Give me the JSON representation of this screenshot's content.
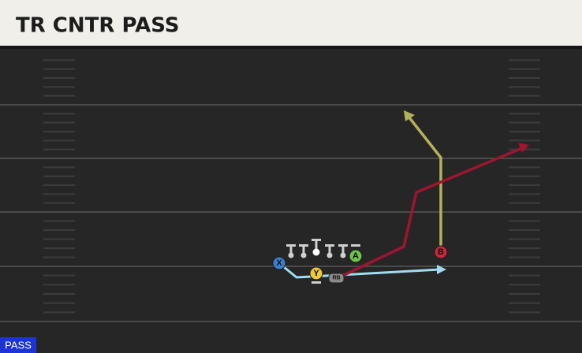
{
  "header": {
    "title": "TR CNTR PASS"
  },
  "players": [
    {
      "label": "X"
    },
    {
      "label": "Y"
    },
    {
      "label": "A"
    },
    {
      "label": "B"
    },
    {
      "label": "RB"
    }
  ],
  "badge": "PASS"
}
